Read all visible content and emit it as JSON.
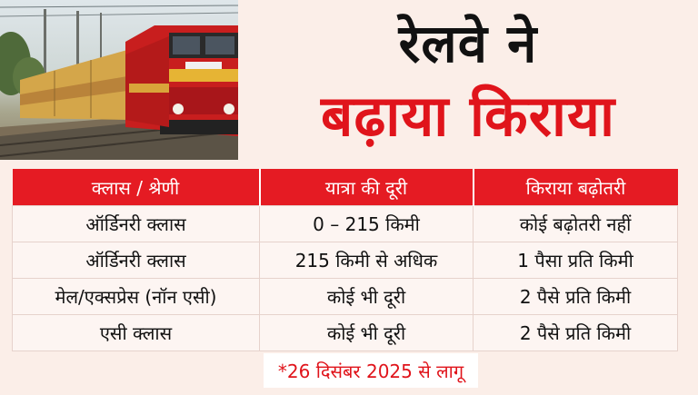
{
  "headline": {
    "line1": "रेलवे ने",
    "line2": "बढ़ाया किराया"
  },
  "colors": {
    "accent": "#e51b23",
    "headline_red": "#e0141b",
    "background": "#fbeee8"
  },
  "fare_table": {
    "headers": [
      "क्लास / श्रेणी",
      "यात्रा की दूरी",
      "किराया बढ़ोतरी"
    ],
    "rows": [
      [
        "ऑर्डिनरी क्लास",
        "0 – 215 किमी",
        "कोई बढ़ोतरी नहीं"
      ],
      [
        "ऑर्डिनरी क्लास",
        "215 किमी से अधिक",
        "1 पैसा प्रति किमी"
      ],
      [
        "मेल/एक्सप्रेस (नॉन एसी)",
        "कोई भी दूरी",
        "2 पैसे प्रति किमी"
      ],
      [
        "एसी क्लास",
        "कोई भी दूरी",
        "2 पैसे प्रति किमी"
      ]
    ]
  },
  "footnote": "*26 दिसंबर 2025 से लागू"
}
